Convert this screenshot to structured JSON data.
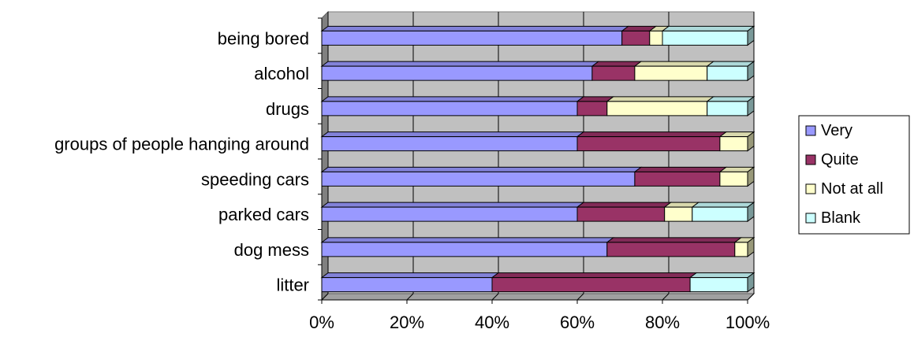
{
  "chart_data": {
    "type": "bar",
    "orientation": "horizontal",
    "stacked": "percent",
    "style": "3d",
    "categories": [
      "being bored",
      "alcohol",
      "drugs",
      "groups of people hanging around",
      "speeding cars",
      "parked cars",
      "dog mess",
      "litter"
    ],
    "series": [
      {
        "name": "Very",
        "color": "#9999FF",
        "values": [
          70.5,
          63.5,
          60,
          60,
          73.5,
          60,
          67,
          40
        ]
      },
      {
        "name": "Quite",
        "color": "#993366",
        "values": [
          6.5,
          10,
          7,
          33.5,
          20,
          20.5,
          30,
          46.5
        ]
      },
      {
        "name": "Not at all",
        "color": "#FFFFCC",
        "values": [
          3,
          17,
          23.5,
          6.5,
          6.5,
          6.5,
          3,
          0
        ]
      },
      {
        "name": "Blank",
        "color": "#CCFFFF",
        "values": [
          20,
          9.5,
          9.5,
          0,
          0,
          13,
          0,
          13.5
        ]
      }
    ],
    "xlim": [
      0,
      100
    ],
    "xticks": [
      "0%",
      "20%",
      "40%",
      "60%",
      "80%",
      "100%"
    ],
    "grid": true,
    "legend": "right",
    "title": "",
    "xlabel": "",
    "ylabel": ""
  }
}
